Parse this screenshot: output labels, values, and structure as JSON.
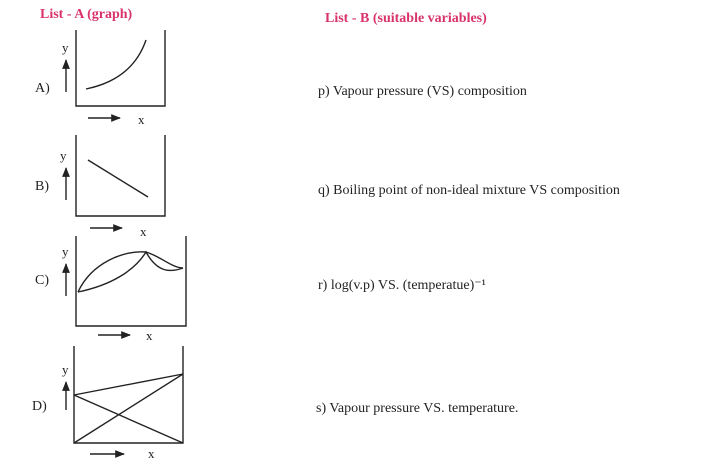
{
  "list_a": {
    "header": "List - A (graph)",
    "items": [
      {
        "label": "A)",
        "y_axis": "y",
        "x_axis": "x"
      },
      {
        "label": "B)",
        "y_axis": "y",
        "x_axis": "x"
      },
      {
        "label": "C)",
        "y_axis": "y",
        "x_axis": "x"
      },
      {
        "label": "D)",
        "y_axis": "y",
        "x_axis": "x"
      }
    ]
  },
  "list_b": {
    "header": "List - B (suitable variables)",
    "items": [
      "p) Vapour pressure (VS) composition",
      "q) Boiling point of non-ideal mixture VS composition",
      "r) log(v.p) VS. (temperatue)⁻¹",
      "s) Vapour pressure VS. temperature."
    ]
  }
}
